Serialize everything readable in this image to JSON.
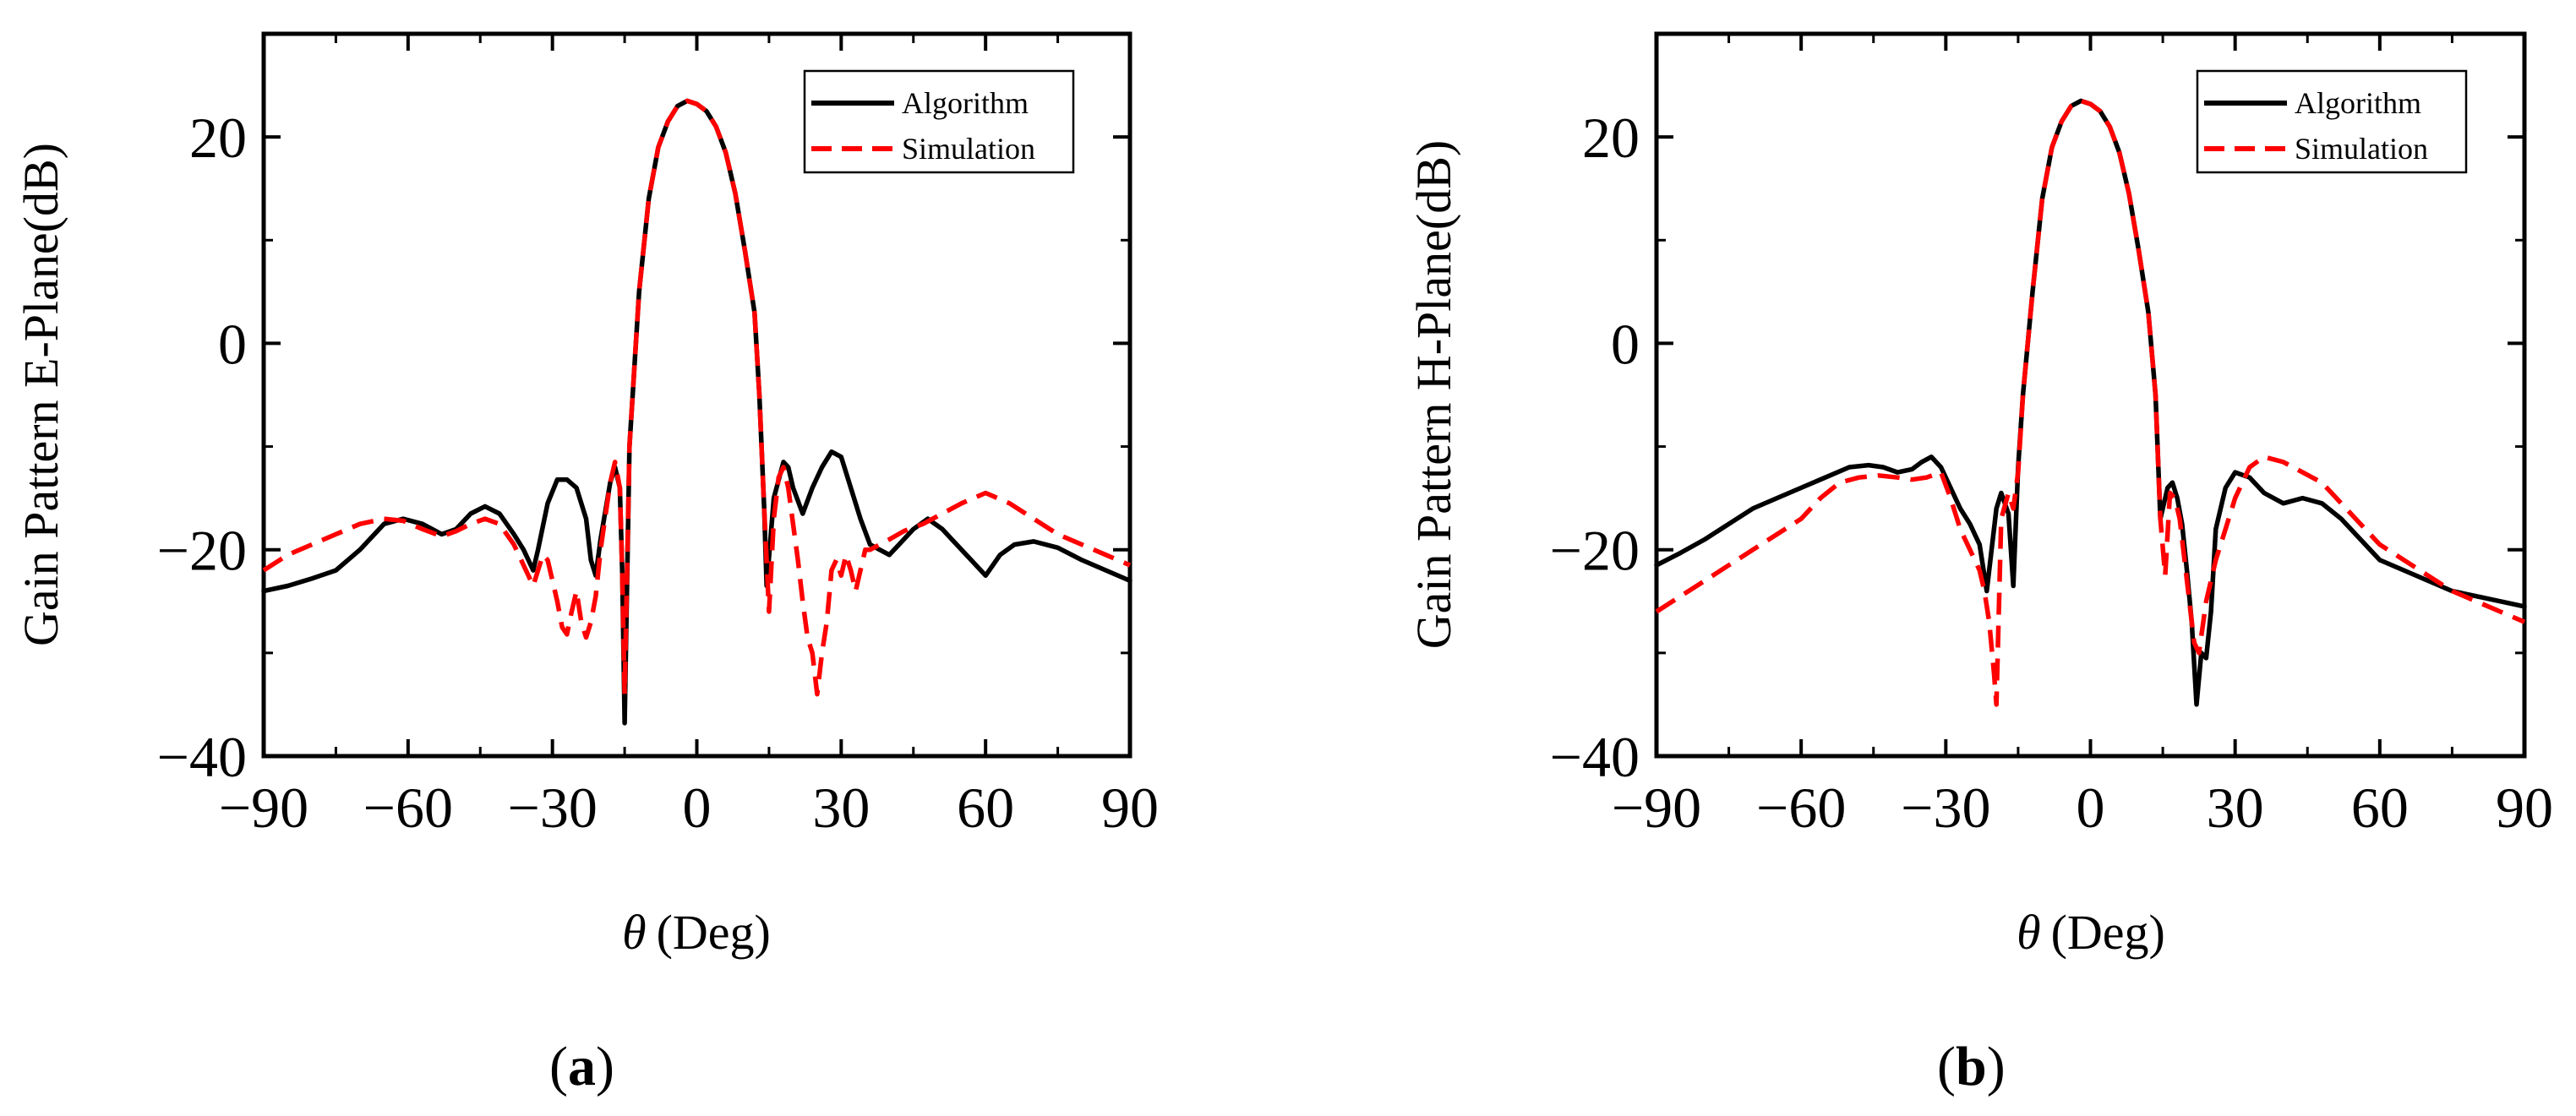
{
  "panels": [
    {
      "label_open": "(",
      "label_letter": "a",
      "label_close": ")"
    },
    {
      "label_open": "(",
      "label_letter": "b",
      "label_close": ")"
    }
  ],
  "colors": {
    "algorithm": "#000000",
    "simulation": "#ff0000",
    "axes": "#000000"
  },
  "chart_data": [
    {
      "type": "line",
      "xlabel_symbol": "θ",
      "xlabel": "(Deg)",
      "ylabel": "Gain Pattern E-Plane(dB)",
      "xlim": [
        -90,
        90
      ],
      "ylim": [
        -40,
        30
      ],
      "xticks": [
        -90,
        -60,
        -30,
        0,
        30,
        60,
        90
      ],
      "xtick_labels": [
        "−90",
        "−60",
        "−30",
        "0",
        "30",
        "60",
        "90"
      ],
      "yticks": [
        -40,
        -20,
        0,
        20
      ],
      "ytick_labels": [
        "−40",
        "−20",
        "0",
        "20"
      ],
      "legend_position": "top-right",
      "grid": false,
      "series": [
        {
          "name": "Algorithm",
          "style": "solid",
          "x": [
            -90,
            -85,
            -80,
            -75,
            -70,
            -65,
            -61,
            -57,
            -53,
            -50,
            -47,
            -44,
            -41,
            -38,
            -36,
            -34,
            -33,
            -31,
            -29,
            -27,
            -25,
            -23,
            -22,
            -21,
            -20,
            -18,
            -17,
            -16,
            -15.5,
            -15,
            -14,
            -12,
            -10,
            -8,
            -6,
            -4,
            -2,
            0,
            2,
            4,
            6,
            8,
            10,
            12,
            13,
            14,
            14.5,
            16,
            18,
            19,
            20,
            22,
            24,
            26,
            28,
            30,
            32,
            34,
            36,
            38,
            40,
            42,
            45,
            48,
            51,
            54,
            57,
            60,
            63,
            66,
            70,
            75,
            80,
            85,
            90
          ],
          "y": [
            -24,
            -23.5,
            -22.8,
            -22,
            -20,
            -17.5,
            -17,
            -17.5,
            -18.5,
            -18,
            -16.5,
            -15.8,
            -16.5,
            -18.5,
            -20,
            -22,
            -20,
            -15.5,
            -13.2,
            -13.2,
            -14,
            -17,
            -21,
            -22.5,
            -19,
            -13.5,
            -12,
            -14,
            -22,
            -36.8,
            -10,
            5,
            14,
            19,
            21.5,
            23,
            23.5,
            23.2,
            22.5,
            21,
            18.5,
            14.5,
            9,
            3,
            -5,
            -16,
            -23.5,
            -15,
            -11.5,
            -12,
            -14,
            -16.5,
            -14,
            -12,
            -10.5,
            -11,
            -14,
            -17,
            -19.5,
            -20,
            -20.5,
            -19.5,
            -18,
            -17,
            -18,
            -19.5,
            -21,
            -22.5,
            -20.5,
            -19.5,
            -19.2,
            -19.8,
            -21,
            -22,
            -23
          ]
        },
        {
          "name": "Simulation",
          "style": "dashed",
          "x": [
            -90,
            -85,
            -80,
            -75,
            -70,
            -65,
            -61,
            -57,
            -53,
            -50,
            -47,
            -44,
            -41,
            -38,
            -36,
            -34,
            -33,
            -32,
            -31,
            -30,
            -29,
            -28,
            -27,
            -26,
            -25,
            -24,
            -23,
            -22,
            -21,
            -20,
            -18,
            -17,
            -16,
            -15.5,
            -15,
            -14,
            -12,
            -10,
            -8,
            -6,
            -4,
            -2,
            0,
            2,
            4,
            6,
            8,
            10,
            12,
            13,
            14,
            15,
            16,
            17,
            18,
            19,
            20,
            21,
            22,
            23,
            24,
            25,
            26,
            27,
            28,
            29,
            30,
            31,
            32,
            33,
            34,
            35,
            36,
            38,
            40,
            43,
            47,
            51,
            55,
            60,
            65,
            70,
            75,
            80,
            85,
            90
          ],
          "y": [
            -22,
            -20.5,
            -19.5,
            -18.5,
            -17.5,
            -17,
            -17.2,
            -18,
            -18.7,
            -18.2,
            -17.5,
            -17,
            -17.5,
            -19.5,
            -21.5,
            -23.5,
            -22,
            -20.5,
            -21,
            -23,
            -25,
            -27.5,
            -28.2,
            -26,
            -24,
            -27,
            -28.5,
            -27,
            -24.5,
            -20,
            -13.5,
            -11.5,
            -14,
            -22,
            -34,
            -10,
            5,
            14,
            19,
            21.5,
            23,
            23.5,
            23.2,
            22.5,
            21,
            18.5,
            14.5,
            9,
            3,
            -5,
            -16,
            -26,
            -17,
            -13,
            -12,
            -14,
            -17.5,
            -21,
            -25,
            -28.5,
            -30,
            -34,
            -30,
            -27,
            -22,
            -21,
            -22.5,
            -20.5,
            -22,
            -24,
            -22,
            -20,
            -20,
            -19.5,
            -19,
            -18.2,
            -17.5,
            -16.5,
            -15.5,
            -14.5,
            -15.5,
            -17,
            -18.5,
            -19.5,
            -20.5,
            -21.5
          ]
        }
      ]
    },
    {
      "type": "line",
      "xlabel_symbol": "θ",
      "xlabel": "(Deg)",
      "ylabel": "Gain Pattern H-Plane(dB)",
      "xlim": [
        -90,
        90
      ],
      "ylim": [
        -40,
        30
      ],
      "xticks": [
        -90,
        -60,
        -30,
        0,
        30,
        60,
        90
      ],
      "xtick_labels": [
        "−90",
        "−60",
        "−30",
        "0",
        "30",
        "60",
        "90"
      ],
      "yticks": [
        -40,
        -20,
        0,
        20
      ],
      "ytick_labels": [
        "−40",
        "−20",
        "0",
        "20"
      ],
      "legend_position": "top-right",
      "grid": false,
      "series": [
        {
          "name": "Algorithm",
          "style": "solid",
          "x": [
            -90,
            -85,
            -80,
            -75,
            -70,
            -65,
            -60,
            -55,
            -50,
            -46,
            -43,
            -40,
            -37,
            -35,
            -33,
            -31,
            -29,
            -27,
            -25,
            -23,
            -21.5,
            -20.5,
            -19.5,
            -18.5,
            -17,
            -16,
            -15,
            -14,
            -12,
            -10,
            -8,
            -6,
            -4,
            -2,
            0,
            2,
            4,
            6,
            8,
            10,
            12,
            13.5,
            14.5,
            16,
            17,
            18,
            19,
            20,
            21,
            22,
            23,
            24,
            25,
            26,
            28,
            30,
            33,
            36,
            40,
            44,
            48,
            52,
            56,
            60,
            65,
            70,
            75,
            80,
            85,
            90
          ],
          "y": [
            -21.5,
            -20.3,
            -19,
            -17.5,
            -16,
            -15,
            -14,
            -13,
            -12,
            -11.8,
            -12,
            -12.5,
            -12.2,
            -11.5,
            -11,
            -12,
            -14,
            -16,
            -17.5,
            -19.5,
            -24,
            -20,
            -16,
            -14.5,
            -16.5,
            -23.5,
            -12,
            -5,
            5,
            14,
            19,
            21.5,
            23,
            23.5,
            23.2,
            22.5,
            21,
            18.5,
            14.5,
            9,
            3,
            -5,
            -17,
            -14,
            -13.5,
            -15,
            -17.5,
            -22,
            -27,
            -35,
            -30,
            -30.5,
            -26,
            -18,
            -14,
            -12.5,
            -13,
            -14.5,
            -15.5,
            -15,
            -15.5,
            -17,
            -19,
            -21,
            -22,
            -23,
            -24,
            -24.5,
            -25,
            -25.5
          ]
        },
        {
          "name": "Simulation",
          "style": "dashed",
          "x": [
            -90,
            -85,
            -80,
            -75,
            -70,
            -65,
            -60,
            -56,
            -52,
            -48,
            -44,
            -40,
            -37,
            -34,
            -31,
            -29,
            -27,
            -25,
            -23,
            -22,
            -21,
            -20,
            -19.5,
            -18.5,
            -17,
            -16,
            -15,
            -14,
            -12,
            -10,
            -8,
            -6,
            -4,
            -2,
            0,
            2,
            4,
            6,
            8,
            10,
            12,
            13.5,
            14.5,
            15.5,
            16.5,
            17.5,
            18.5,
            19.5,
            20.5,
            21.5,
            22.5,
            24,
            26,
            28,
            30,
            33,
            36,
            40,
            44,
            48,
            52,
            56,
            60,
            65,
            70,
            75,
            80,
            85,
            90
          ],
          "y": [
            -26,
            -24.5,
            -23,
            -21.5,
            -20,
            -18.5,
            -17,
            -15,
            -13.5,
            -13,
            -12.8,
            -13,
            -13.2,
            -13,
            -12.5,
            -15,
            -18,
            -20,
            -22,
            -24,
            -27,
            -32,
            -35,
            -17,
            -14.5,
            -16,
            -12.5,
            -5,
            5,
            14,
            19,
            21.5,
            23,
            23.5,
            23.2,
            22.5,
            21,
            18.5,
            14.5,
            9,
            3,
            -5,
            -17,
            -22.5,
            -14.5,
            -15,
            -17,
            -21,
            -25,
            -29,
            -30,
            -25,
            -21,
            -18,
            -15,
            -12,
            -11,
            -11.5,
            -12.5,
            -13.5,
            -15.5,
            -17.5,
            -19.5,
            -21,
            -22.5,
            -24,
            -25,
            -26,
            -27
          ]
        }
      ]
    }
  ]
}
